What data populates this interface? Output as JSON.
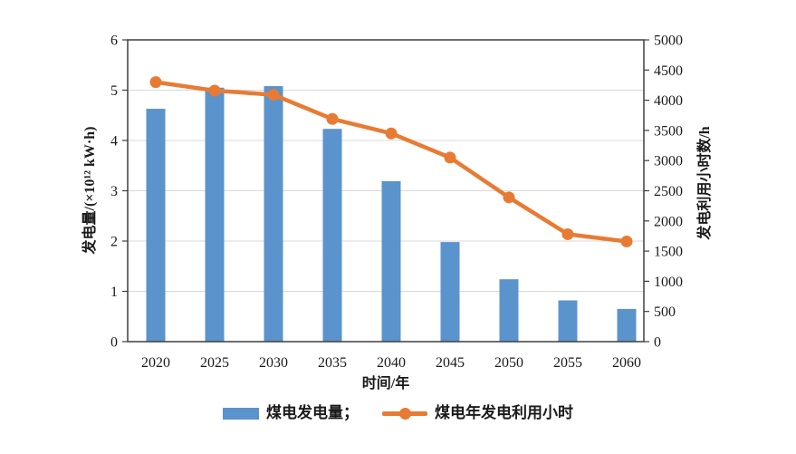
{
  "chart_data": {
    "type": "combo-bar-line",
    "categories": [
      "2020",
      "2025",
      "2030",
      "2035",
      "2040",
      "2045",
      "2050",
      "2055",
      "2060"
    ],
    "series": [
      {
        "name": "煤电发电量",
        "type": "bar",
        "axis": "left",
        "values": [
          4.63,
          5.05,
          5.08,
          4.23,
          3.19,
          1.98,
          1.24,
          0.82,
          0.65
        ]
      },
      {
        "name": "煤电年发电利用小时",
        "type": "line",
        "axis": "right",
        "values": [
          4300,
          4160,
          4090,
          3690,
          3450,
          3050,
          2390,
          1780,
          1660
        ]
      }
    ],
    "xlabel": "时间/年",
    "left_axis": {
      "label": "发电量/(×10¹² kW·h)",
      "min": 0,
      "max": 6,
      "ticks": [
        0,
        1,
        2,
        3,
        4,
        5,
        6
      ]
    },
    "right_axis": {
      "label": "发电利用小时数/h",
      "min": 0,
      "max": 5000,
      "ticks": [
        0,
        500,
        1000,
        1500,
        2000,
        2500,
        3000,
        3500,
        4000,
        4500,
        5000
      ]
    },
    "grid": true,
    "legend": {
      "position": "bottom",
      "entries": [
        {
          "label": "煤电发电量；",
          "swatch": "bar"
        },
        {
          "label": "煤电年发电利用小时",
          "swatch": "line-marker"
        }
      ]
    }
  },
  "style": {
    "bar_color": "#5B93CC",
    "line_color": "#E87B33",
    "grid_color": "#D9D9D9",
    "axis_color": "#3F3F3F",
    "text_color": "#1A1A1A",
    "background": "#FFFFFF"
  }
}
